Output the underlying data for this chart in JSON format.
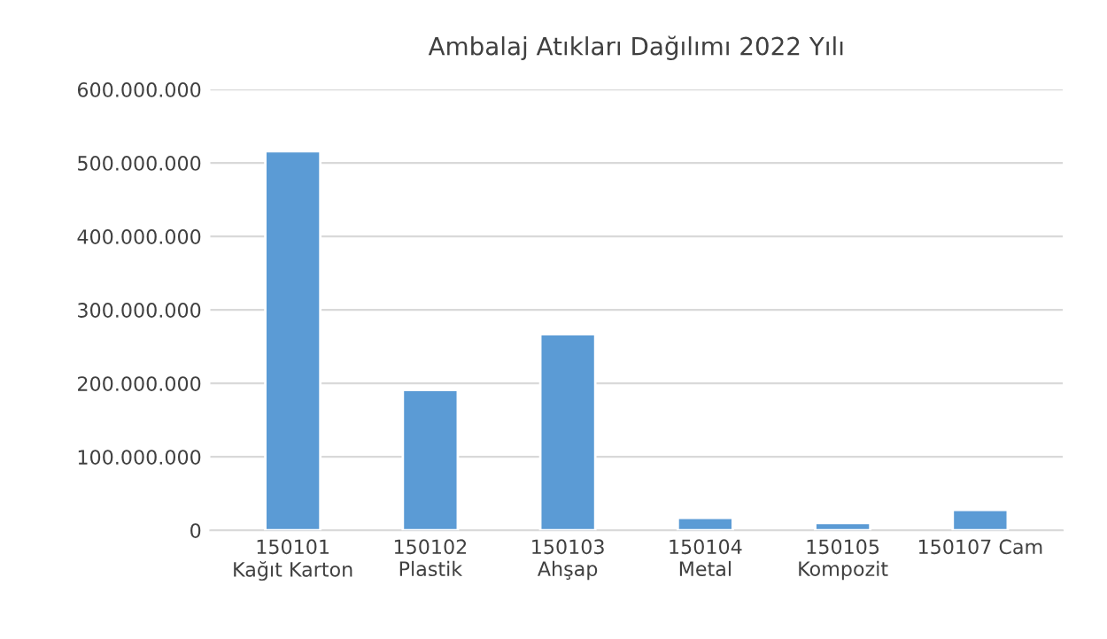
{
  "chart_data": {
    "type": "bar",
    "title": "Ambalaj Atıkları Dağılımı 2022 Yılı",
    "categories": [
      "150101\nKağıt Karton",
      "150102\nPlastik",
      "150103\nAhşap",
      "150104\nMetal",
      "150105\nKompozit",
      "150107 Cam"
    ],
    "values": [
      516000000,
      191000000,
      267000000,
      17000000,
      10000000,
      28000000
    ],
    "color": "#5b9bd5",
    "ylim": [
      0,
      600000000
    ],
    "yticks": [
      {
        "value": 0,
        "label": "0"
      },
      {
        "value": 100000000,
        "label": "100.000.000"
      },
      {
        "value": 200000000,
        "label": "200.000.000"
      },
      {
        "value": 300000000,
        "label": "300.000.000"
      },
      {
        "value": 400000000,
        "label": "400.000.000"
      },
      {
        "value": 500000000,
        "label": "500.000.000"
      },
      {
        "value": 600000000,
        "label": "600.000.000"
      }
    ],
    "grid": "y"
  }
}
